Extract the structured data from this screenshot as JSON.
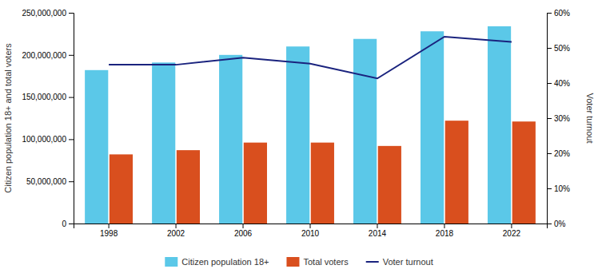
{
  "chart_data": {
    "type": "bar",
    "categories": [
      "1998",
      "2002",
      "2006",
      "2010",
      "2014",
      "2018",
      "2022"
    ],
    "series": [
      {
        "name": "Citizen population 18+",
        "color": "#5bc8e8",
        "values": [
          182000000,
          191000000,
          200000000,
          210000000,
          219000000,
          228000000,
          234000000
        ]
      },
      {
        "name": "Total voters",
        "color": "#d94f1e",
        "values": [
          82000000,
          87000000,
          96000000,
          96000000,
          92000000,
          122000000,
          121000000
        ]
      },
      {
        "name": "Voter turnout",
        "type": "line",
        "axis": "y2",
        "color": "#1a237e",
        "values": [
          0.452,
          0.452,
          0.472,
          0.455,
          0.413,
          0.532,
          0.517
        ]
      }
    ],
    "ylabel": "Citizen population 18+ and total voters",
    "y2label": "Voter turnout",
    "ylim": [
      0,
      250000000
    ],
    "yticks": [
      0,
      {
        "value": 50000000,
        "label": "50,000,000"
      },
      {
        "value": 100000000,
        "label": "100,000,000"
      },
      {
        "value": 150000000,
        "label": "150,000,000"
      },
      {
        "value": 200000000,
        "label": "200,000,000"
      },
      {
        "value": 250000000,
        "label": "250,000,000"
      }
    ],
    "y2lim": [
      0,
      0.6
    ],
    "y2ticks": [
      {
        "value": 0.0,
        "label": "0%"
      },
      {
        "value": 0.1,
        "label": "10%"
      },
      {
        "value": 0.2,
        "label": "20%"
      },
      {
        "value": 0.3,
        "label": "30%"
      },
      {
        "value": 0.4,
        "label": "40%"
      },
      {
        "value": 0.5,
        "label": "50%"
      },
      {
        "value": 0.6,
        "label": "60%"
      }
    ],
    "legend": "bottom"
  }
}
